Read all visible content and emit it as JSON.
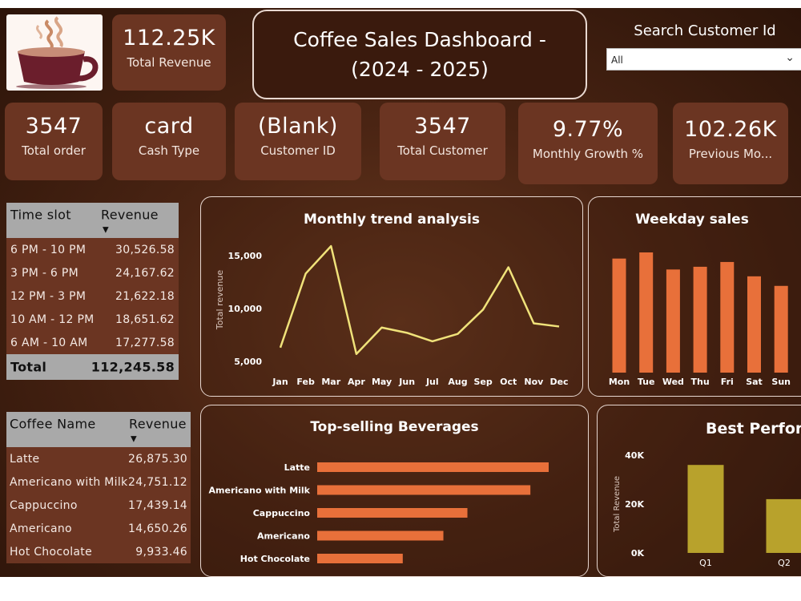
{
  "title": "Coffee Sales Dashboard - (2024 - 2025)",
  "kpi_top": {
    "value": "112.25K",
    "label": "Total Revenue"
  },
  "search": {
    "label": "Search Customer Id",
    "value": "All"
  },
  "kpis": [
    {
      "value": "3547",
      "label": "Total order"
    },
    {
      "value": "card",
      "label": "Cash Type"
    },
    {
      "value": "(Blank)",
      "label": "Customer ID"
    },
    {
      "value": "3547",
      "label": "Total Customer"
    },
    {
      "value": "9.77%",
      "label": "Monthly Growth %"
    },
    {
      "value": "102.26K",
      "label": "Previous Mo..."
    }
  ],
  "timeslot_table": {
    "col1": "Time slot",
    "col2": "Revenue",
    "rows": [
      {
        "slot": "6 PM - 10 PM",
        "rev": "30,526.58"
      },
      {
        "slot": "3 PM - 6 PM",
        "rev": "24,167.62"
      },
      {
        "slot": "12 PM - 3 PM",
        "rev": "21,622.18"
      },
      {
        "slot": "10 AM - 12 PM",
        "rev": "18,651.62"
      },
      {
        "slot": "6 AM - 10 AM",
        "rev": "17,277.58"
      }
    ],
    "total_label": "Total",
    "total_value": "112,245.58"
  },
  "coffee_table": {
    "col1": "Coffee Name",
    "col2": "Revenue",
    "rows": [
      {
        "name": "Latte",
        "rev": "26,875.30"
      },
      {
        "name": "Americano with Milk",
        "rev": "24,751.12"
      },
      {
        "name": "Cappuccino",
        "rev": "17,439.14"
      },
      {
        "name": "Americano",
        "rev": "14,650.26"
      },
      {
        "name": "Hot Chocolate",
        "rev": "9,933.46"
      }
    ]
  },
  "colors": {
    "card": "#6b3522",
    "bar": "#e8703a",
    "line": "#f0e27a",
    "qbar": "#b8a22c",
    "header": "#a9a9a9"
  },
  "chart_data": [
    {
      "type": "line",
      "title": "Monthly trend analysis",
      "ylabel": "Total revenue",
      "categories": [
        "Jan",
        "Feb",
        "Mar",
        "Apr",
        "May",
        "Jun",
        "Jul",
        "Aug",
        "Sep",
        "Oct",
        "Nov",
        "Dec"
      ],
      "values": [
        6300,
        13300,
        15900,
        5700,
        8200,
        7700,
        6900,
        7600,
        9900,
        13900,
        8600,
        8300
      ],
      "yticks": [
        "5,000",
        "10,000",
        "15,000"
      ],
      "ylim": [
        5000,
        15000
      ]
    },
    {
      "type": "bar",
      "title": "Weekday sales",
      "categories": [
        "Mon",
        "Tue",
        "Wed",
        "Thu",
        "Fri",
        "Sat",
        "Sun"
      ],
      "values": [
        16700,
        17600,
        15100,
        15500,
        16200,
        14100,
        12700
      ]
    },
    {
      "type": "bar",
      "title": "Top-selling Beverages",
      "orientation": "horizontal",
      "categories": [
        "Latte",
        "Americano with Milk",
        "Cappuccino",
        "Americano",
        "Hot Chocolate"
      ],
      "values": [
        26875.3,
        24751.12,
        17439.14,
        14650.26,
        9933.46
      ]
    },
    {
      "type": "bar",
      "title": "Best Perform",
      "ylabel": "Total Revenue",
      "categories": [
        "Q1",
        "Q2"
      ],
      "values": [
        36000,
        22000
      ],
      "yticks": [
        "0K",
        "20K",
        "40K"
      ],
      "ylim": [
        0,
        40000
      ]
    }
  ]
}
